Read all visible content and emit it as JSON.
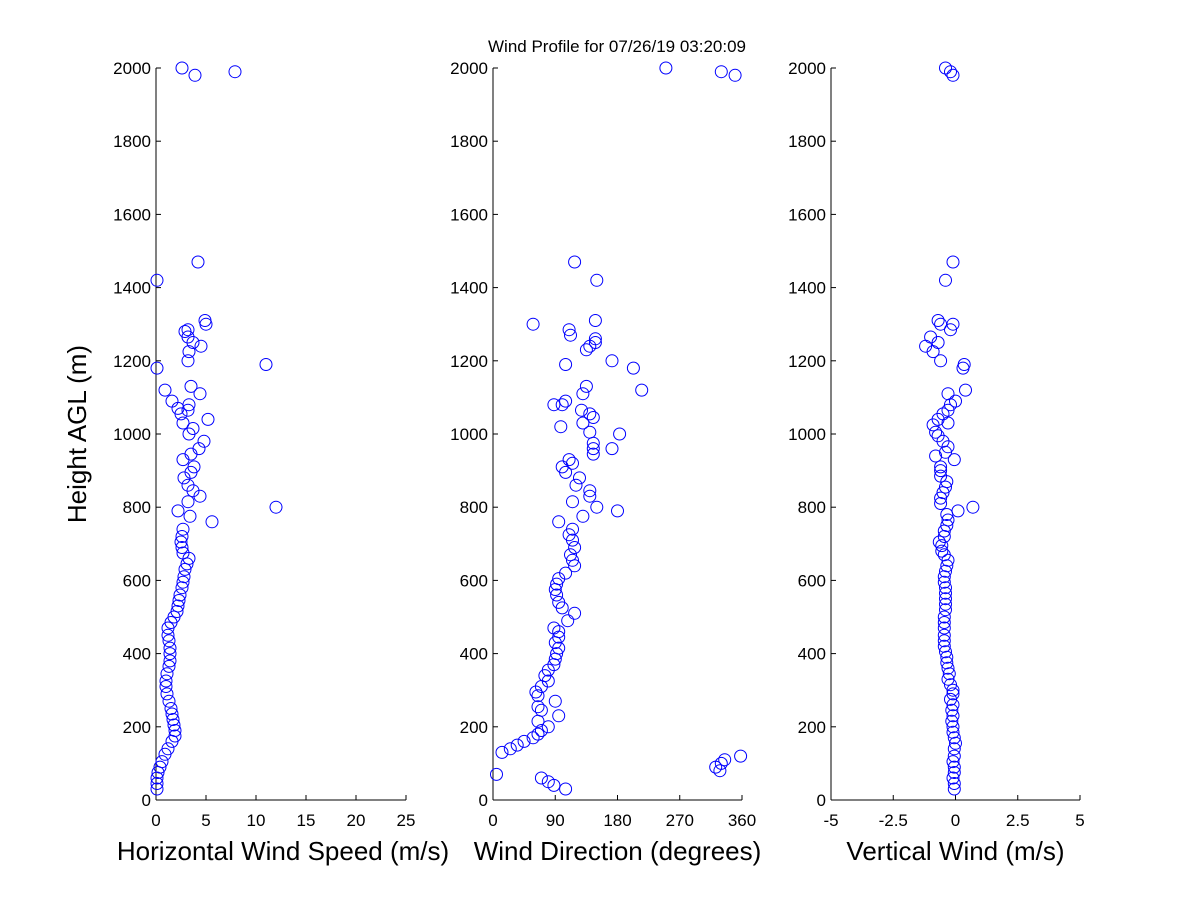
{
  "figure": {
    "title": "Wind Profile for  07/26/19 03:20:09",
    "ylabel": "Height AGL (m)",
    "marker_color": "#0000ff"
  },
  "chart_data": [
    {
      "type": "scatter",
      "xlabel": "Horizontal Wind Speed (m/s)",
      "ylabel": "Height AGL (m)",
      "xlim": [
        0,
        25
      ],
      "ylim": [
        0,
        2000
      ],
      "xticks": [
        0,
        5,
        10,
        15,
        20,
        25
      ],
      "xtick_labels": [
        "0",
        "5",
        "10",
        "15",
        "20",
        "25"
      ],
      "yticks": [
        0,
        200,
        400,
        600,
        800,
        1000,
        1200,
        1400,
        1600,
        1800,
        2000
      ],
      "ytick_labels": [
        "0",
        "200",
        "400",
        "600",
        "800",
        "1000",
        "1200",
        "1400",
        "1600",
        "1800",
        "2000"
      ],
      "points": [
        [
          0.1,
          30
        ],
        [
          0.1,
          45
        ],
        [
          0.1,
          60
        ],
        [
          0.2,
          75
        ],
        [
          0.4,
          90
        ],
        [
          0.6,
          105
        ],
        [
          0.9,
          125
        ],
        [
          1.2,
          140
        ],
        [
          1.6,
          160
        ],
        [
          1.9,
          175
        ],
        [
          1.9,
          190
        ],
        [
          1.8,
          205
        ],
        [
          1.7,
          220
        ],
        [
          1.6,
          235
        ],
        [
          1.5,
          250
        ],
        [
          1.3,
          270
        ],
        [
          1.1,
          290
        ],
        [
          1.0,
          310
        ],
        [
          1.0,
          325
        ],
        [
          1.1,
          345
        ],
        [
          1.3,
          365
        ],
        [
          1.4,
          380
        ],
        [
          1.4,
          400
        ],
        [
          1.4,
          415
        ],
        [
          1.3,
          435
        ],
        [
          1.2,
          450
        ],
        [
          1.2,
          470
        ],
        [
          1.5,
          485
        ],
        [
          1.8,
          500
        ],
        [
          2.1,
          515
        ],
        [
          2.2,
          530
        ],
        [
          2.3,
          545
        ],
        [
          2.4,
          560
        ],
        [
          2.6,
          580
        ],
        [
          2.7,
          595
        ],
        [
          2.8,
          610
        ],
        [
          2.9,
          630
        ],
        [
          3.1,
          645
        ],
        [
          3.3,
          660
        ],
        [
          2.7,
          675
        ],
        [
          2.6,
          690
        ],
        [
          2.5,
          705
        ],
        [
          2.6,
          720
        ],
        [
          2.7,
          740
        ],
        [
          2.2,
          790
        ],
        [
          3.4,
          775
        ],
        [
          5.6,
          760
        ],
        [
          12.0,
          800
        ],
        [
          3.2,
          815
        ],
        [
          4.4,
          830
        ],
        [
          3.7,
          845
        ],
        [
          3.2,
          860
        ],
        [
          2.8,
          880
        ],
        [
          3.5,
          895
        ],
        [
          3.8,
          910
        ],
        [
          2.7,
          930
        ],
        [
          3.5,
          945
        ],
        [
          4.3,
          960
        ],
        [
          4.8,
          980
        ],
        [
          3.3,
          1000
        ],
        [
          3.7,
          1015
        ],
        [
          2.7,
          1030
        ],
        [
          5.2,
          1040
        ],
        [
          2.5,
          1055
        ],
        [
          3.2,
          1065
        ],
        [
          2.2,
          1070
        ],
        [
          3.3,
          1080
        ],
        [
          1.6,
          1090
        ],
        [
          4.4,
          1110
        ],
        [
          0.9,
          1120
        ],
        [
          3.5,
          1130
        ],
        [
          0.1,
          1180
        ],
        [
          11.0,
          1190
        ],
        [
          3.2,
          1200
        ],
        [
          3.3,
          1225
        ],
        [
          4.5,
          1240
        ],
        [
          3.7,
          1250
        ],
        [
          3.2,
          1265
        ],
        [
          2.9,
          1280
        ],
        [
          3.2,
          1285
        ],
        [
          5.0,
          1300
        ],
        [
          4.9,
          1310
        ],
        [
          0.1,
          1420
        ],
        [
          4.2,
          1470
        ],
        [
          3.9,
          1980
        ],
        [
          2.6,
          2000
        ],
        [
          7.9,
          1990
        ]
      ]
    },
    {
      "type": "scatter",
      "xlabel": "Wind Direction (degrees)",
      "ylabel": "",
      "xlim": [
        0,
        360
      ],
      "ylim": [
        0,
        2000
      ],
      "xticks": [
        0,
        90,
        180,
        270,
        360
      ],
      "xtick_labels": [
        "0",
        "90",
        "180",
        "270",
        "360"
      ],
      "yticks": [
        0,
        200,
        400,
        600,
        800,
        1000,
        1200,
        1400,
        1600,
        1800,
        2000
      ],
      "ytick_labels": [
        "0",
        "200",
        "400",
        "600",
        "800",
        "1000",
        "1200",
        "1400",
        "1600",
        "1800",
        "2000"
      ],
      "points": [
        [
          105,
          30
        ],
        [
          88,
          40
        ],
        [
          80,
          50
        ],
        [
          70,
          60
        ],
        [
          5,
          70
        ],
        [
          328,
          80
        ],
        [
          322,
          90
        ],
        [
          330,
          100
        ],
        [
          335,
          110
        ],
        [
          358,
          120
        ],
        [
          13,
          130
        ],
        [
          25,
          140
        ],
        [
          35,
          150
        ],
        [
          45,
          160
        ],
        [
          58,
          170
        ],
        [
          65,
          180
        ],
        [
          70,
          190
        ],
        [
          80,
          200
        ],
        [
          65,
          215
        ],
        [
          95,
          230
        ],
        [
          70,
          245
        ],
        [
          65,
          255
        ],
        [
          90,
          270
        ],
        [
          65,
          285
        ],
        [
          62,
          295
        ],
        [
          70,
          310
        ],
        [
          80,
          325
        ],
        [
          75,
          340
        ],
        [
          80,
          355
        ],
        [
          88,
          370
        ],
        [
          90,
          385
        ],
        [
          92,
          400
        ],
        [
          95,
          415
        ],
        [
          90,
          430
        ],
        [
          95,
          445
        ],
        [
          95,
          460
        ],
        [
          88,
          470
        ],
        [
          108,
          490
        ],
        [
          118,
          510
        ],
        [
          100,
          525
        ],
        [
          95,
          540
        ],
        [
          92,
          560
        ],
        [
          90,
          575
        ],
        [
          92,
          590
        ],
        [
          95,
          605
        ],
        [
          105,
          620
        ],
        [
          118,
          640
        ],
        [
          115,
          655
        ],
        [
          112,
          670
        ],
        [
          118,
          690
        ],
        [
          115,
          710
        ],
        [
          110,
          725
        ],
        [
          115,
          740
        ],
        [
          95,
          760
        ],
        [
          130,
          775
        ],
        [
          180,
          790
        ],
        [
          150,
          800
        ],
        [
          115,
          815
        ],
        [
          140,
          830
        ],
        [
          140,
          845
        ],
        [
          120,
          860
        ],
        [
          125,
          880
        ],
        [
          105,
          895
        ],
        [
          100,
          910
        ],
        [
          115,
          920
        ],
        [
          110,
          930
        ],
        [
          145,
          945
        ],
        [
          145,
          960
        ],
        [
          172,
          960
        ],
        [
          145,
          975
        ],
        [
          183,
          1000
        ],
        [
          140,
          1005
        ],
        [
          98,
          1020
        ],
        [
          130,
          1030
        ],
        [
          145,
          1045
        ],
        [
          140,
          1055
        ],
        [
          128,
          1065
        ],
        [
          100,
          1080
        ],
        [
          88,
          1080
        ],
        [
          105,
          1090
        ],
        [
          130,
          1110
        ],
        [
          135,
          1130
        ],
        [
          215,
          1120
        ],
        [
          203,
          1180
        ],
        [
          105,
          1190
        ],
        [
          172,
          1200
        ],
        [
          135,
          1230
        ],
        [
          140,
          1240
        ],
        [
          148,
          1250
        ],
        [
          148,
          1260
        ],
        [
          112,
          1270
        ],
        [
          110,
          1285
        ],
        [
          58,
          1300
        ],
        [
          148,
          1310
        ],
        [
          150,
          1420
        ],
        [
          118,
          1470
        ],
        [
          250,
          2000
        ],
        [
          330,
          1990
        ],
        [
          350,
          1980
        ]
      ]
    },
    {
      "type": "scatter",
      "xlabel": "Vertical Wind (m/s)",
      "ylabel": "",
      "xlim": [
        -5,
        5
      ],
      "ylim": [
        0,
        2000
      ],
      "xticks": [
        -5,
        -2.5,
        0,
        2.5,
        5
      ],
      "xtick_labels": [
        "-5",
        "-2.5",
        "0",
        "2.5",
        "5"
      ],
      "yticks": [
        0,
        200,
        400,
        600,
        800,
        1000,
        1200,
        1400,
        1600,
        1800,
        2000
      ],
      "ytick_labels": [
        "0",
        "200",
        "400",
        "600",
        "800",
        "1000",
        "1200",
        "1400",
        "1600",
        "1800",
        "2000"
      ],
      "points": [
        [
          -0.05,
          30
        ],
        [
          -0.05,
          45
        ],
        [
          -0.1,
          60
        ],
        [
          -0.05,
          75
        ],
        [
          -0.05,
          90
        ],
        [
          -0.1,
          105
        ],
        [
          -0.05,
          120
        ],
        [
          -0.05,
          140
        ],
        [
          0,
          155
        ],
        [
          -0.05,
          170
        ],
        [
          -0.1,
          185
        ],
        [
          -0.1,
          200
        ],
        [
          -0.15,
          215
        ],
        [
          -0.1,
          230
        ],
        [
          -0.15,
          245
        ],
        [
          -0.1,
          260
        ],
        [
          -0.2,
          275
        ],
        [
          -0.1,
          290
        ],
        [
          -0.1,
          300
        ],
        [
          -0.2,
          315
        ],
        [
          -0.3,
          330
        ],
        [
          -0.25,
          345
        ],
        [
          -0.3,
          360
        ],
        [
          -0.35,
          375
        ],
        [
          -0.35,
          390
        ],
        [
          -0.4,
          405
        ],
        [
          -0.45,
          420
        ],
        [
          -0.45,
          435
        ],
        [
          -0.45,
          450
        ],
        [
          -0.45,
          470
        ],
        [
          -0.45,
          485
        ],
        [
          -0.45,
          500
        ],
        [
          -0.4,
          520
        ],
        [
          -0.4,
          535
        ],
        [
          -0.4,
          550
        ],
        [
          -0.4,
          565
        ],
        [
          -0.4,
          580
        ],
        [
          -0.45,
          595
        ],
        [
          -0.45,
          610
        ],
        [
          -0.4,
          625
        ],
        [
          -0.35,
          640
        ],
        [
          -0.3,
          655
        ],
        [
          -0.45,
          670
        ],
        [
          -0.55,
          680
        ],
        [
          -0.55,
          695
        ],
        [
          -0.65,
          705
        ],
        [
          -0.45,
          720
        ],
        [
          -0.45,
          735
        ],
        [
          -0.35,
          750
        ],
        [
          -0.3,
          765
        ],
        [
          -0.35,
          780
        ],
        [
          0.1,
          790
        ],
        [
          0.7,
          800
        ],
        [
          -0.6,
          810
        ],
        [
          -0.6,
          825
        ],
        [
          -0.5,
          840
        ],
        [
          -0.4,
          855
        ],
        [
          -0.35,
          870
        ],
        [
          -0.6,
          885
        ],
        [
          -0.6,
          900
        ],
        [
          -0.6,
          910
        ],
        [
          -0.05,
          930
        ],
        [
          -0.8,
          940
        ],
        [
          -0.4,
          950
        ],
        [
          -0.3,
          965
        ],
        [
          -0.5,
          980
        ],
        [
          -0.7,
          995
        ],
        [
          -0.8,
          1005
        ],
        [
          -0.9,
          1025
        ],
        [
          -0.3,
          1030
        ],
        [
          -0.7,
          1040
        ],
        [
          -0.5,
          1055
        ],
        [
          -0.3,
          1065
        ],
        [
          -0.2,
          1080
        ],
        [
          0,
          1090
        ],
        [
          -0.3,
          1110
        ],
        [
          0.4,
          1120
        ],
        [
          0.3,
          1180
        ],
        [
          0.35,
          1190
        ],
        [
          -0.6,
          1200
        ],
        [
          -0.9,
          1225
        ],
        [
          -1.2,
          1240
        ],
        [
          -0.7,
          1250
        ],
        [
          -1.0,
          1265
        ],
        [
          -0.2,
          1285
        ],
        [
          -0.6,
          1300
        ],
        [
          -0.7,
          1310
        ],
        [
          -0.1,
          1300
        ],
        [
          -0.4,
          1420
        ],
        [
          -0.1,
          1470
        ],
        [
          -0.1,
          1980
        ],
        [
          -0.4,
          2000
        ],
        [
          -0.2,
          1990
        ]
      ]
    }
  ]
}
